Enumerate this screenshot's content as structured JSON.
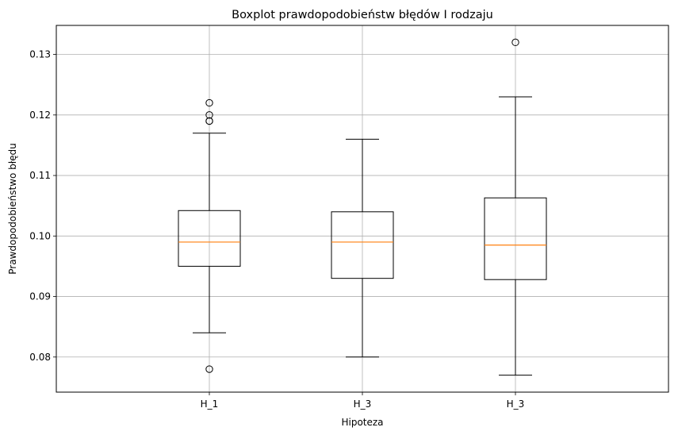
{
  "chart_data": {
    "type": "boxplot",
    "title": "Boxplot prawdopodobieństw błędów I rodzaju",
    "xlabel": "Hipoteza",
    "ylabel": "Prawdopodobieństwo błędu",
    "ylim": [
      0.0742,
      0.1348
    ],
    "yticks": [
      "0.08",
      "0.09",
      "0.10",
      "0.11",
      "0.12",
      "0.13"
    ],
    "ytick_values": [
      0.08,
      0.09,
      0.1,
      0.11,
      0.12,
      0.13
    ],
    "grid": true,
    "categories": [
      "H_1",
      "H_3",
      "H_3"
    ],
    "boxes": [
      {
        "whisker_low": 0.084,
        "q1": 0.095,
        "median": 0.099,
        "q3": 0.1042,
        "whisker_high": 0.117,
        "outliers": [
          0.078,
          0.119,
          0.119,
          0.12,
          0.122
        ]
      },
      {
        "whisker_low": 0.08,
        "q1": 0.093,
        "median": 0.099,
        "q3": 0.104,
        "whisker_high": 0.116,
        "outliers": []
      },
      {
        "whisker_low": 0.077,
        "q1": 0.0928,
        "median": 0.0985,
        "q3": 0.1063,
        "whisker_high": 0.123,
        "outliers": [
          0.132
        ]
      }
    ],
    "colors": {
      "box": "#000000",
      "median": "#ff7f0e",
      "grid": "#b0b0b0",
      "outlier_edge": "#000000"
    }
  }
}
